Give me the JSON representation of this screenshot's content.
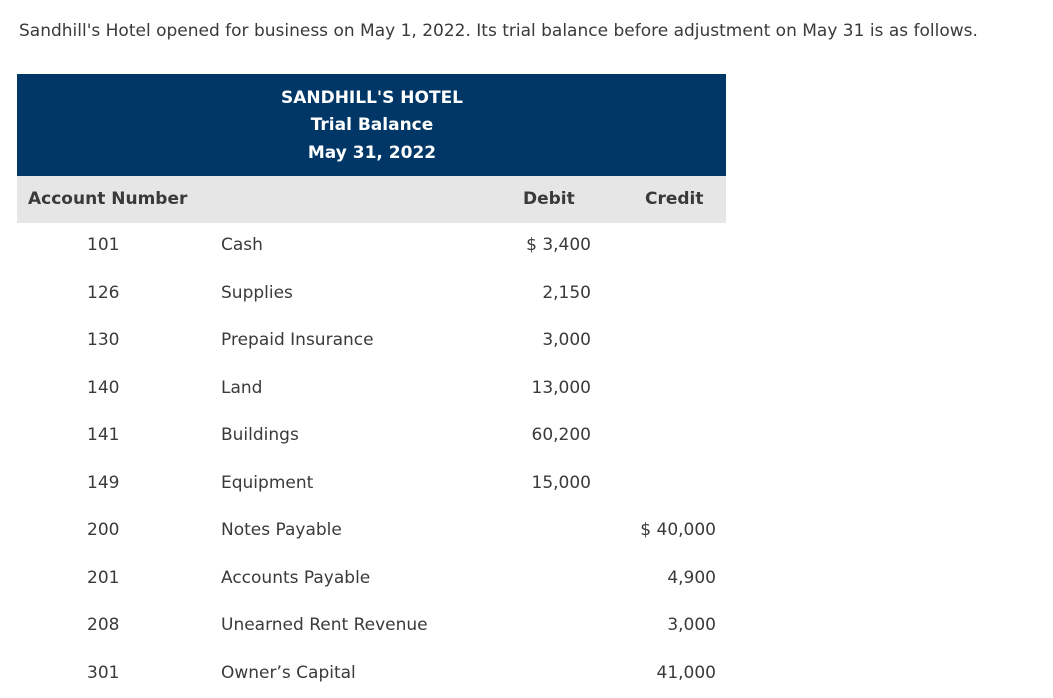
{
  "intro": "Sandhill's Hotel opened for business on May 1, 2022. Its trial balance before adjustment on May 31 is as follows.",
  "table": {
    "title_line1": "SANDHILL'S HOTEL",
    "title_line2": "Trial Balance",
    "title_line3": "May 31, 2022",
    "columns": {
      "account_number": "Account Number",
      "debit": "Debit",
      "credit": "Credit"
    },
    "rows": [
      {
        "number": "101",
        "name": "Cash",
        "debit": "$ 3,400",
        "credit": ""
      },
      {
        "number": "126",
        "name": "Supplies",
        "debit": "2,150",
        "credit": ""
      },
      {
        "number": "130",
        "name": "Prepaid Insurance",
        "debit": "3,000",
        "credit": ""
      },
      {
        "number": "140",
        "name": "Land",
        "debit": "13,000",
        "credit": ""
      },
      {
        "number": "141",
        "name": "Buildings",
        "debit": "60,200",
        "credit": ""
      },
      {
        "number": "149",
        "name": "Equipment",
        "debit": "15,000",
        "credit": ""
      },
      {
        "number": "200",
        "name": "Notes Payable",
        "debit": "",
        "credit": "$ 40,000"
      },
      {
        "number": "201",
        "name": "Accounts Payable",
        "debit": "",
        "credit": "4,900"
      },
      {
        "number": "208",
        "name": "Unearned Rent Revenue",
        "debit": "",
        "credit": "3,000"
      },
      {
        "number": "301",
        "name": "Owner’s Capital",
        "debit": "",
        "credit": "41,000"
      }
    ]
  },
  "colors": {
    "banner": "#003767",
    "header_row": "#e6e6e6"
  }
}
